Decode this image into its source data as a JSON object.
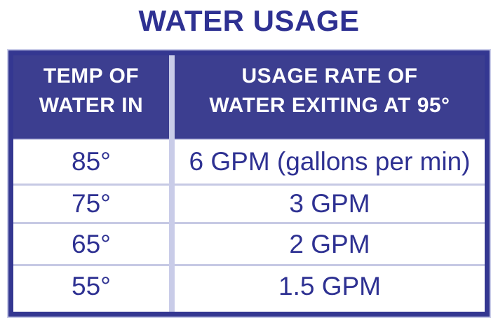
{
  "title": "WATER USAGE",
  "colors": {
    "navy_text": "#2E3192",
    "header_background": "#3C3E90",
    "table_border": "#343791",
    "divider_lavender": "#C9CCE8",
    "header_text": "#FFFFFF",
    "row_background": "#FFFFFF"
  },
  "table": {
    "header": {
      "col1": {
        "line1": "TEMP OF",
        "line2": "WATER IN"
      },
      "col2": {
        "line1": "USAGE RATE OF",
        "line2": "WATER EXITING AT 95°"
      }
    },
    "rows": [
      {
        "temp": "85°",
        "rate": "6 GPM (gallons per min)"
      },
      {
        "temp": "75°",
        "rate": "3 GPM"
      },
      {
        "temp": "65°",
        "rate": "2 GPM"
      },
      {
        "temp": "55°",
        "rate": "1.5 GPM"
      }
    ]
  },
  "chart_data": {
    "type": "table",
    "title": "WATER USAGE",
    "columns": [
      "TEMP OF WATER IN",
      "USAGE RATE OF WATER EXITING AT 95°"
    ],
    "rows": [
      [
        "85°",
        "6 GPM (gallons per min)"
      ],
      [
        "75°",
        "3 GPM"
      ],
      [
        "65°",
        "2 GPM"
      ],
      [
        "55°",
        "1.5 GPM"
      ]
    ],
    "temp_of_water_in_degrees": [
      85,
      75,
      65,
      55
    ],
    "usage_rate_gpm": [
      6,
      3,
      2,
      1.5
    ],
    "exit_temperature_degrees": 95,
    "unit": "GPM (gallons per min)"
  }
}
